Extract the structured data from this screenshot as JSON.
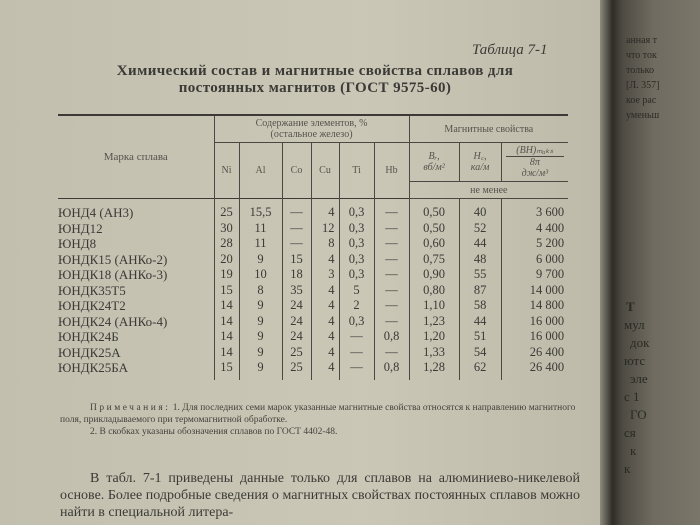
{
  "table_label": "Таблица 7-1",
  "heading": [
    "Химический состав и магнитные свойства сплавов для",
    "постоянных магнитов (ГОСТ 9575-60)"
  ],
  "table": {
    "col_mark": "Марка сплава",
    "col_content": [
      "Содержание элементов, %",
      "(остальное железо)"
    ],
    "col_magnetic": "Магнитные свойства",
    "elements": [
      "Ni",
      "Al",
      "Co",
      "Cu",
      "Ti",
      "Nb"
    ],
    "elements_display": [
      "Ni",
      "Al",
      "Co",
      "Cu",
      "Ti",
      "Hb"
    ],
    "br": [
      "Bᵣ,",
      "вб/м²"
    ],
    "hc": [
      "H꜀,",
      "ка/м"
    ],
    "bh": [
      "(BH)ₘₐₖₛ",
      "8π",
      "дж/м³"
    ],
    "min_label": "не менее",
    "rows": [
      [
        "ЮНД4 (АН3)",
        "25",
        "15,5",
        "—",
        "4",
        "0,3",
        "—",
        "0,50",
        "40",
        "3 600"
      ],
      [
        "ЮНД12",
        "30",
        "11",
        "—",
        "12",
        "0,3",
        "—",
        "0,50",
        "52",
        "4 400"
      ],
      [
        "ЮНД8",
        "28",
        "11",
        "—",
        "8",
        "0,3",
        "—",
        "0,60",
        "44",
        "5 200"
      ],
      [
        "ЮНДК15 (АНКо-2)",
        "20",
        "9",
        "15",
        "4",
        "0,3",
        "—",
        "0,75",
        "48",
        "6 000"
      ],
      [
        "ЮНДК18 (АНКо-3)",
        "19",
        "10",
        "18",
        "3",
        "0,3",
        "—",
        "0,90",
        "55",
        "9 700"
      ],
      [
        "ЮНДК35Т5",
        "15",
        "8",
        "35",
        "4",
        "5",
        "—",
        "0,80",
        "87",
        "14 000"
      ],
      [
        "ЮНДК24Т2",
        "14",
        "9",
        "24",
        "4",
        "2",
        "—",
        "1,10",
        "58",
        "14 800"
      ],
      [
        "ЮНДК24 (АНКо-4)",
        "14",
        "9",
        "24",
        "4",
        "0,3",
        "—",
        "1,23",
        "44",
        "16 000"
      ],
      [
        "ЮНДК24Б",
        "14",
        "9",
        "24",
        "4",
        "—",
        "0,8",
        "1,20",
        "51",
        "16 000"
      ],
      [
        "ЮНДК25А",
        "14",
        "9",
        "25",
        "4",
        "—",
        "—",
        "1,33",
        "54",
        "26 400"
      ],
      [
        "ЮНДК25БА",
        "15",
        "9",
        "25",
        "4",
        "—",
        "0,8",
        "1,28",
        "62",
        "26 400"
      ]
    ]
  },
  "notes": {
    "lead": "Примечания:",
    "n1": "1. Для последних семи марок указанные магнитные свойства относятся к направлению магнитного поля, прикладываемого при термомагнитной обработке.",
    "n2": "2. В скобках указаны обозначения сплавов по ГОСТ 4402-48."
  },
  "paragraph": "В табл. 7-1 приведены данные только для сплавов на алюминиево-никелевой основе. Более подробные сведения о магнитных свойствах постоянных сплавов можно найти в специальной литера-",
  "right_page_fragments": [
    "анная т",
    "что ток",
    "только",
    "[Л. 357]",
    "кое рас",
    "уменьш",
    "Т",
    "мул",
    "док",
    "ютс",
    "эле",
    "с 1",
    "ГО",
    "ся",
    "к",
    "к"
  ]
}
